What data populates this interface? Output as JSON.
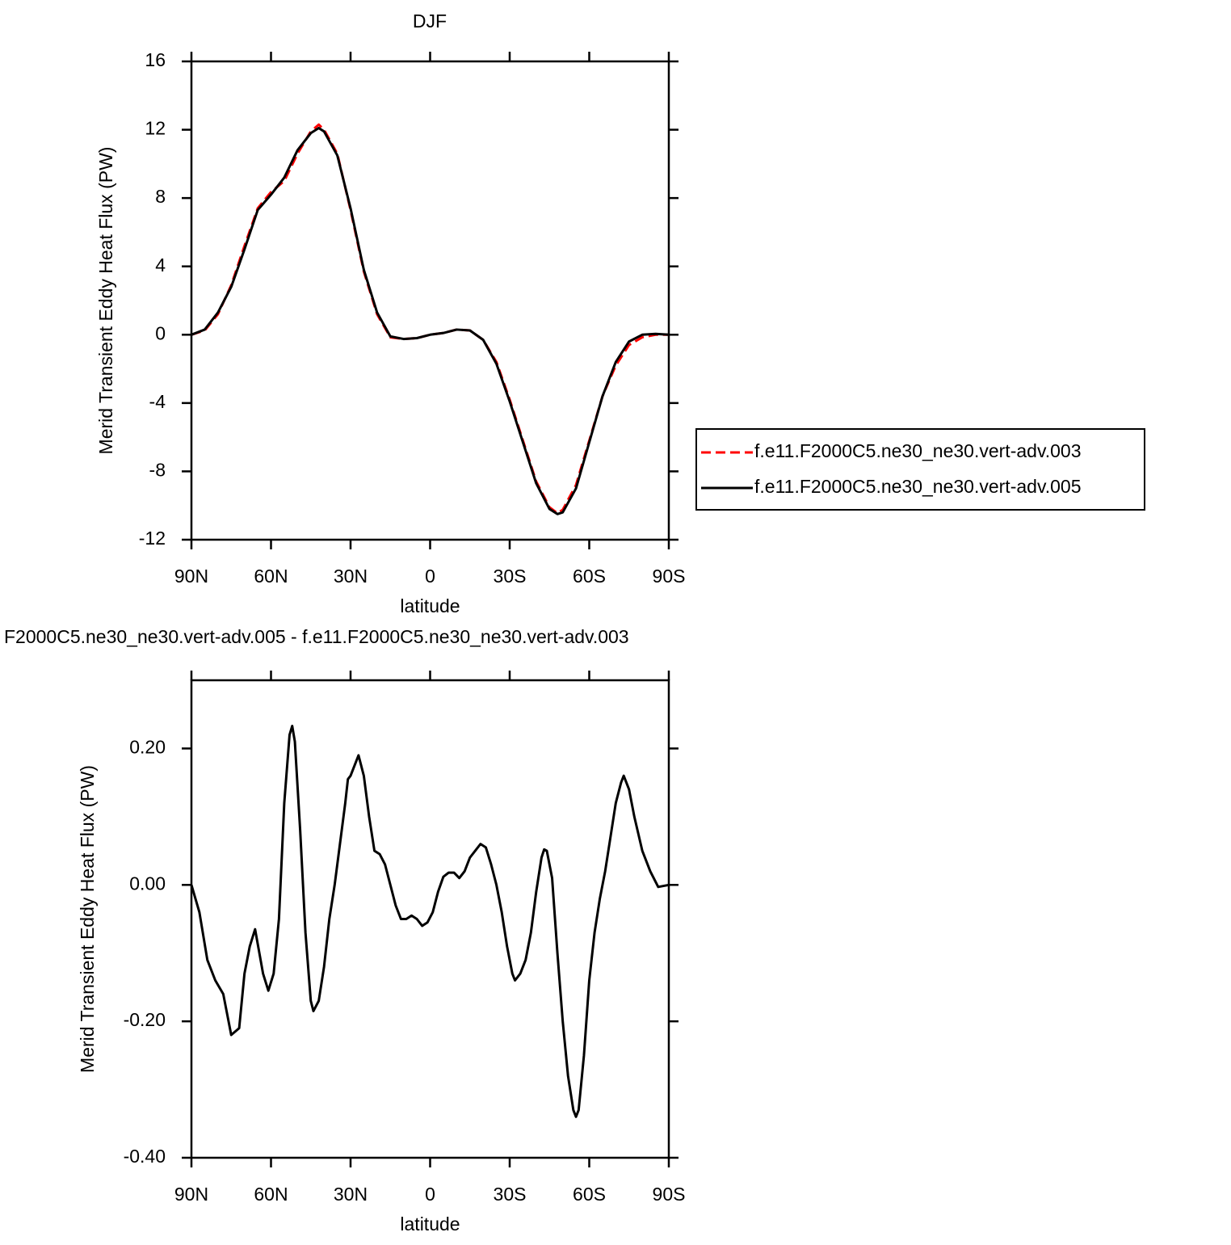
{
  "chart_data": [
    {
      "type": "line",
      "title": "DJF",
      "xlabel": "latitude",
      "ylabel": "Merid Transient Eddy Heat Flux (PW)",
      "x": [
        90,
        85,
        80,
        75,
        70,
        65,
        60,
        55,
        50,
        45,
        42,
        40,
        35,
        30,
        25,
        20,
        15,
        10,
        5,
        0,
        -5,
        -10,
        -15,
        -20,
        -25,
        -30,
        -35,
        -40,
        -45,
        -48,
        -50,
        -55,
        -60,
        -65,
        -70,
        -75,
        -80,
        -85,
        -90
      ],
      "series": [
        {
          "name": "f.e11.F2000C5.ne30_ne30.vert-adv.003",
          "color": "#ff0000",
          "line_style": "dashed",
          "values": [
            0,
            0.25,
            1.2,
            2.9,
            5.2,
            7.4,
            8.35,
            9.0,
            10.6,
            11.9,
            12.3,
            12.0,
            10.6,
            7.3,
            3.7,
            1.2,
            -0.15,
            -0.25,
            -0.2,
            0,
            0.1,
            0.3,
            0.25,
            -0.3,
            -1.6,
            -3.8,
            -6.2,
            -8.6,
            -10.1,
            -10.45,
            -10.25,
            -8.8,
            -6.2,
            -3.6,
            -1.8,
            -0.6,
            -0.15,
            0,
            0
          ]
        },
        {
          "name": "f.e11.F2000C5.ne30_ne30.vert-adv.005",
          "color": "#000000",
          "line_style": "solid",
          "values": [
            0,
            0.3,
            1.3,
            2.8,
            5.0,
            7.3,
            8.2,
            9.2,
            10.8,
            11.8,
            12.1,
            11.9,
            10.5,
            7.4,
            3.8,
            1.3,
            -0.1,
            -0.25,
            -0.2,
            0,
            0.1,
            0.3,
            0.25,
            -0.3,
            -1.7,
            -3.9,
            -6.3,
            -8.7,
            -10.2,
            -10.5,
            -10.4,
            -9.0,
            -6.3,
            -3.6,
            -1.6,
            -0.4,
            0,
            0.05,
            0
          ]
        }
      ],
      "xlim": [
        90,
        -90
      ],
      "xticks": [
        {
          "value": 90,
          "label": "90N"
        },
        {
          "value": 60,
          "label": "60N"
        },
        {
          "value": 30,
          "label": "30N"
        },
        0,
        {
          "value": -30,
          "label": "30S"
        },
        {
          "value": -60,
          "label": "60S"
        },
        {
          "value": -90,
          "label": "90S"
        }
      ],
      "ylim": [
        -12,
        16
      ],
      "yticks": [
        -12,
        -8,
        -4,
        0,
        4,
        8,
        12,
        16
      ],
      "legend": "right"
    },
    {
      "type": "line",
      "title": "F2000C5.ne30_ne30.vert-adv.005 - f.e11.F2000C5.ne30_ne30.vert-adv.003",
      "xlabel": "latitude",
      "ylabel": "Merid Transient Eddy Heat Flux (PW)",
      "x": [
        90,
        87,
        84,
        81,
        78,
        75,
        72,
        70,
        68,
        66,
        63,
        61,
        59,
        57,
        55,
        53,
        52,
        51,
        49,
        47,
        45,
        44,
        42,
        40,
        38,
        36,
        34,
        32,
        31,
        30,
        28,
        27,
        25,
        23,
        21,
        19,
        17,
        15,
        13,
        11,
        9,
        7,
        5,
        3,
        1,
        -1,
        -3,
        -5,
        -7,
        -9,
        -11,
        -13,
        -15,
        -17,
        -19,
        -21,
        -23,
        -25,
        -27,
        -29,
        -31,
        -32,
        -34,
        -36,
        -38,
        -40,
        -42,
        -43,
        -44,
        -46,
        -48,
        -50,
        -52,
        -54,
        -55,
        -56,
        -58,
        -60,
        -62,
        -64,
        -66,
        -68,
        -70,
        -72,
        -73,
        -75,
        -77,
        -80,
        -83,
        -86,
        -90
      ],
      "values": [
        0,
        -0.04,
        -0.11,
        -0.14,
        -0.16,
        -0.22,
        -0.21,
        -0.13,
        -0.09,
        -0.065,
        -0.13,
        -0.155,
        -0.13,
        -0.05,
        0.12,
        0.22,
        0.233,
        0.21,
        0.08,
        -0.07,
        -0.17,
        -0.185,
        -0.17,
        -0.12,
        -0.05,
        0,
        0.06,
        0.12,
        0.155,
        0.16,
        0.18,
        0.19,
        0.16,
        0.1,
        0.05,
        0.045,
        0.03,
        0,
        -0.03,
        -0.05,
        -0.05,
        -0.045,
        -0.05,
        -0.06,
        -0.055,
        -0.04,
        -0.01,
        0.012,
        0.018,
        0.018,
        0.01,
        0.02,
        0.04,
        0.05,
        0.06,
        0.055,
        0.03,
        0,
        -0.04,
        -0.09,
        -0.13,
        -0.14,
        -0.13,
        -0.11,
        -0.07,
        -0.01,
        0.04,
        0.052,
        0.05,
        0.01,
        -0.1,
        -0.2,
        -0.28,
        -0.33,
        -0.34,
        -0.33,
        -0.25,
        -0.14,
        -0.07,
        -0.02,
        0.02,
        0.07,
        0.12,
        0.15,
        0.16,
        0.14,
        0.1,
        0.05,
        0.02,
        -0.003,
        0
      ],
      "color": "#000000",
      "xlim": [
        90,
        -90
      ],
      "xticks": [
        {
          "value": 90,
          "label": "90N"
        },
        {
          "value": 60,
          "label": "60N"
        },
        {
          "value": 30,
          "label": "30N"
        },
        0,
        {
          "value": -30,
          "label": "30S"
        },
        {
          "value": -60,
          "label": "60S"
        },
        {
          "value": -90,
          "label": "90S"
        }
      ],
      "ylim": [
        -0.4,
        0.3
      ],
      "yticks": [
        {
          "value": -0.4,
          "label": "-0.40"
        },
        {
          "value": -0.2,
          "label": "-0.20"
        },
        {
          "value": 0,
          "label": "0.00"
        },
        {
          "value": 0.2,
          "label": "0.20"
        }
      ]
    }
  ]
}
